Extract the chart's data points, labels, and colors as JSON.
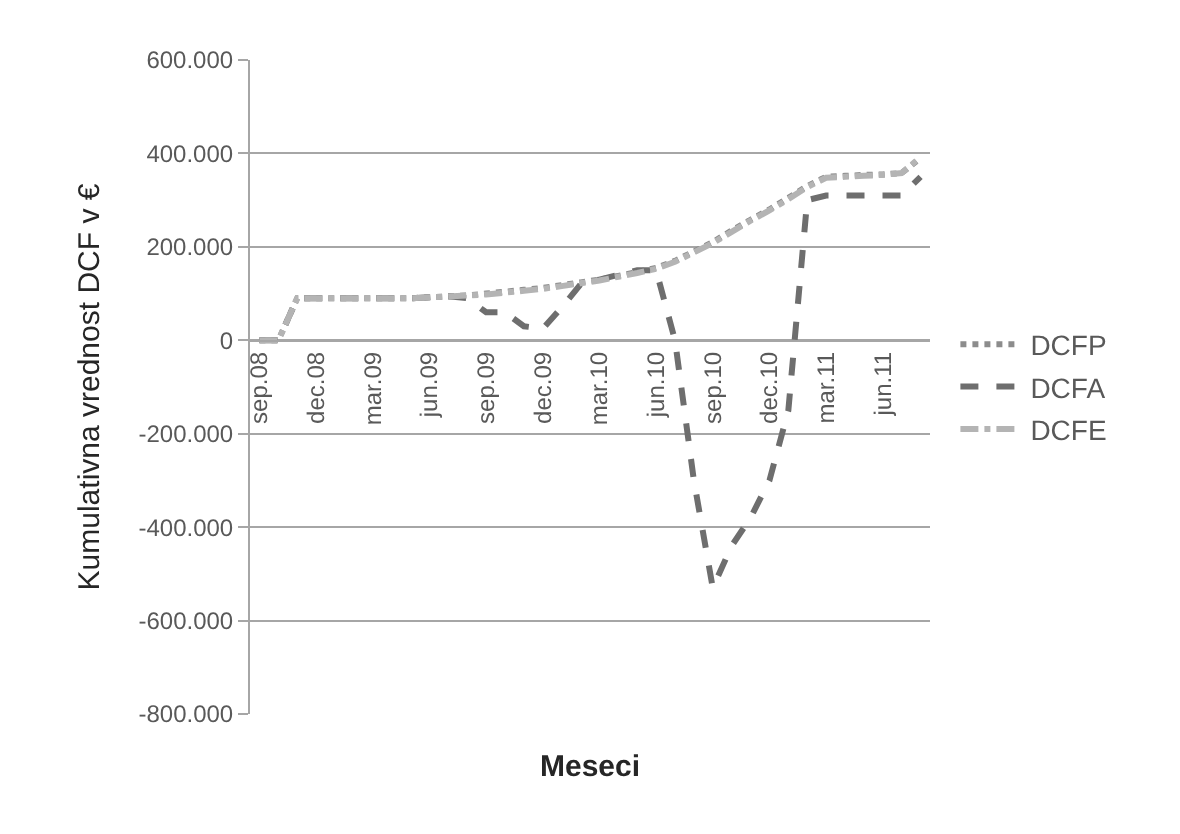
{
  "chart_data": {
    "type": "line",
    "xlabel": "Meseci",
    "ylabel": "Kumulativna vrednost DCF v €",
    "categories": [
      "sep.08",
      null,
      null,
      "dec.08",
      null,
      null,
      "mar.09",
      null,
      null,
      "jun.09",
      null,
      null,
      "sep.09",
      null,
      null,
      "dec.09",
      null,
      null,
      "mar.10",
      null,
      null,
      "jun.10",
      null,
      null,
      "sep.10",
      null,
      null,
      "dec.10",
      null,
      null,
      "mar.11",
      null,
      null,
      "jun.11",
      null,
      null
    ],
    "series": [
      {
        "name": "DCFP",
        "color": "#8c8c8c",
        "line_style": "dotted",
        "values": [
          0,
          0,
          90000,
          90000,
          90000,
          90000,
          90000,
          90000,
          90000,
          92000,
          94000,
          96000,
          100000,
          104000,
          108000,
          112000,
          118000,
          124000,
          130000,
          138000,
          146000,
          155000,
          170000,
          190000,
          210000,
          235000,
          258000,
          280000,
          305000,
          330000,
          350000,
          352000,
          354000,
          355000,
          358000,
          390000
        ]
      },
      {
        "name": "DCFA",
        "color": "#6e6e6e",
        "line_style": "dashed",
        "values": [
          0,
          0,
          90000,
          90000,
          90000,
          90000,
          90000,
          90000,
          90000,
          92000,
          94000,
          90000,
          60000,
          60000,
          30000,
          25000,
          70000,
          120000,
          130000,
          140000,
          150000,
          150000,
          0,
          -300000,
          -530000,
          -440000,
          -380000,
          -300000,
          -150000,
          300000,
          310000,
          310000,
          310000,
          310000,
          310000,
          350000
        ]
      },
      {
        "name": "DCFE",
        "color": "#b4b4b4",
        "line_style": "dashdot",
        "values": [
          0,
          0,
          90000,
          90000,
          90000,
          90000,
          90000,
          90000,
          90000,
          92000,
          94000,
          96000,
          98000,
          102000,
          106000,
          110000,
          116000,
          122000,
          128000,
          136000,
          144000,
          153000,
          168000,
          188000,
          208000,
          232000,
          256000,
          278000,
          302000,
          328000,
          348000,
          350000,
          352000,
          354000,
          358000,
          392000
        ]
      }
    ],
    "ylim": [
      -800000,
      600000
    ],
    "yticks": [
      {
        "value": -800000,
        "label": "-800.000"
      },
      {
        "value": -600000,
        "label": "-600.000"
      },
      {
        "value": -400000,
        "label": "-400.000"
      },
      {
        "value": -200000,
        "label": "-200.000"
      },
      0,
      {
        "value": 200000,
        "label": "200.000"
      },
      {
        "value": 400000,
        "label": "400.000"
      },
      {
        "value": 600000,
        "label": "600.000"
      }
    ],
    "grid": "y",
    "legend": "right"
  }
}
